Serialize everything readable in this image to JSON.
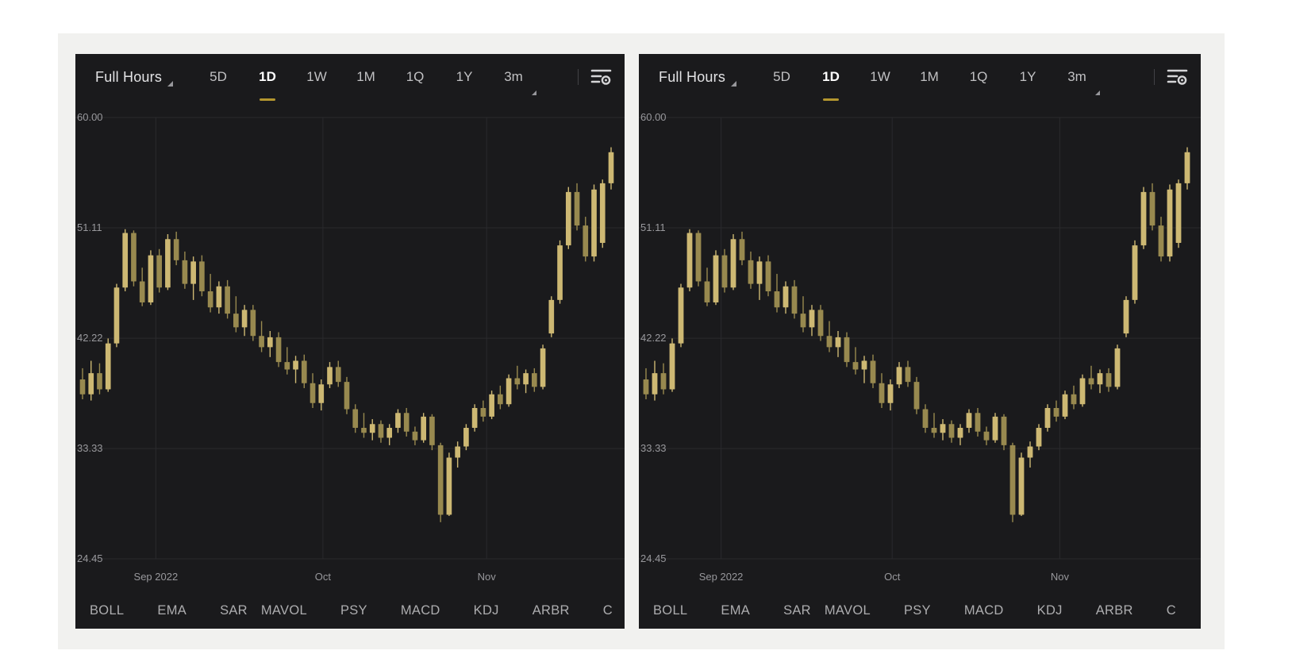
{
  "page": {
    "background": "#ffffff",
    "card_background": "#f1f1ef"
  },
  "panel": {
    "toolbar": {
      "range_selector_label": "Full Hours",
      "tabs": [
        {
          "label": "5D",
          "active": false
        },
        {
          "label": "1D",
          "active": true
        },
        {
          "label": "1W",
          "active": false
        },
        {
          "label": "1M",
          "active": false
        },
        {
          "label": "1Q",
          "active": false
        },
        {
          "label": "1Y",
          "active": false
        },
        {
          "label": "3m",
          "active": false,
          "corner": true
        }
      ],
      "settings_icon": "list-gear-icon"
    },
    "indicators": [
      "BOLL",
      "EMA",
      "SAR",
      "|",
      "MAVOL",
      "PSY",
      "MACD",
      "KDJ",
      "ARBR",
      "C"
    ]
  },
  "chart_data": {
    "type": "candlestick",
    "panels": 2,
    "note": "two identical daily candlestick panels side by side, Aug-Nov 2022",
    "x_axis": {
      "labels": [
        "Sep 2022",
        "Oct",
        "Nov"
      ],
      "tick_candle_indices": [
        8.6,
        28.2,
        47.4
      ]
    },
    "y_axis": {
      "tick_labels": [
        "60.00",
        "51.11",
        "42.22",
        "33.33",
        "24.45"
      ],
      "tick_values": [
        60.0,
        51.11,
        42.22,
        33.33,
        24.45
      ]
    },
    "ohlc": [
      [
        38.9,
        39.8,
        37.3,
        37.7
      ],
      [
        37.7,
        40.4,
        37.2,
        39.4
      ],
      [
        39.4,
        40.2,
        37.7,
        38.1
      ],
      [
        38.1,
        42.2,
        37.9,
        41.8
      ],
      [
        41.8,
        46.6,
        41.5,
        46.3
      ],
      [
        46.3,
        51.0,
        46.0,
        50.7
      ],
      [
        50.7,
        50.9,
        46.4,
        46.8
      ],
      [
        46.8,
        47.9,
        44.8,
        45.1
      ],
      [
        45.1,
        49.3,
        44.9,
        48.9
      ],
      [
        48.9,
        49.4,
        45.9,
        46.3
      ],
      [
        46.3,
        50.6,
        46.1,
        50.2
      ],
      [
        50.2,
        50.8,
        48.1,
        48.5
      ],
      [
        48.5,
        49.2,
        46.2,
        46.6
      ],
      [
        46.6,
        48.8,
        45.3,
        48.4
      ],
      [
        48.4,
        48.9,
        45.6,
        46.0
      ],
      [
        46.0,
        47.4,
        44.3,
        44.7
      ],
      [
        44.7,
        46.8,
        44.2,
        46.4
      ],
      [
        46.4,
        46.9,
        43.8,
        44.2
      ],
      [
        44.2,
        45.6,
        42.7,
        43.1
      ],
      [
        43.1,
        44.9,
        42.4,
        44.5
      ],
      [
        44.5,
        44.9,
        42.0,
        42.4
      ],
      [
        42.4,
        43.6,
        41.1,
        41.5
      ],
      [
        41.5,
        42.8,
        40.7,
        42.3
      ],
      [
        42.3,
        42.7,
        39.9,
        40.3
      ],
      [
        40.3,
        41.5,
        39.3,
        39.7
      ],
      [
        39.7,
        40.8,
        38.6,
        40.4
      ],
      [
        40.4,
        40.9,
        38.2,
        38.6
      ],
      [
        38.6,
        39.4,
        36.6,
        37.0
      ],
      [
        37.0,
        38.9,
        36.4,
        38.5
      ],
      [
        38.5,
        40.3,
        38.2,
        39.9
      ],
      [
        39.9,
        40.4,
        38.3,
        38.7
      ],
      [
        38.7,
        39.1,
        36.1,
        36.5
      ],
      [
        36.5,
        36.9,
        34.6,
        35.0
      ],
      [
        35.0,
        36.2,
        34.2,
        34.6
      ],
      [
        34.6,
        35.7,
        34.0,
        35.3
      ],
      [
        35.3,
        35.6,
        33.8,
        34.2
      ],
      [
        34.2,
        35.3,
        33.6,
        35.0
      ],
      [
        35.0,
        36.5,
        34.6,
        36.2
      ],
      [
        36.2,
        36.6,
        34.3,
        34.7
      ],
      [
        34.7,
        35.1,
        33.6,
        34.0
      ],
      [
        34.0,
        36.2,
        33.8,
        35.9
      ],
      [
        35.9,
        36.1,
        33.2,
        33.6
      ],
      [
        33.6,
        33.8,
        27.4,
        28.0
      ],
      [
        28.0,
        33.0,
        27.9,
        32.6
      ],
      [
        32.6,
        33.9,
        31.8,
        33.5
      ],
      [
        33.5,
        35.3,
        33.2,
        35.0
      ],
      [
        35.0,
        36.9,
        34.7,
        36.6
      ],
      [
        36.6,
        37.2,
        35.5,
        35.9
      ],
      [
        35.9,
        38.0,
        35.7,
        37.7
      ],
      [
        37.7,
        38.4,
        36.5,
        36.9
      ],
      [
        36.9,
        39.3,
        36.7,
        39.0
      ],
      [
        39.0,
        40.0,
        38.1,
        38.5
      ],
      [
        38.5,
        39.7,
        37.8,
        39.4
      ],
      [
        39.4,
        39.8,
        37.9,
        38.3
      ],
      [
        38.3,
        41.7,
        38.1,
        41.4
      ],
      [
        42.6,
        45.6,
        42.3,
        45.3
      ],
      [
        45.3,
        50.1,
        45.0,
        49.7
      ],
      [
        49.7,
        54.4,
        49.4,
        54.0
      ],
      [
        54.0,
        54.7,
        50.9,
        51.3
      ],
      [
        51.3,
        52.0,
        48.4,
        48.8
      ],
      [
        48.8,
        54.6,
        48.4,
        54.2
      ],
      [
        49.9,
        55.0,
        49.5,
        54.7
      ],
      [
        54.7,
        57.6,
        54.2,
        57.2
      ]
    ],
    "colors": {
      "up": "#cdb873",
      "down": "#98894f",
      "grid": "#2a2a2d",
      "panel_bg": "#1a1a1c",
      "axis_text": "#98989c",
      "active_tab_underline": "#b3962f"
    }
  }
}
